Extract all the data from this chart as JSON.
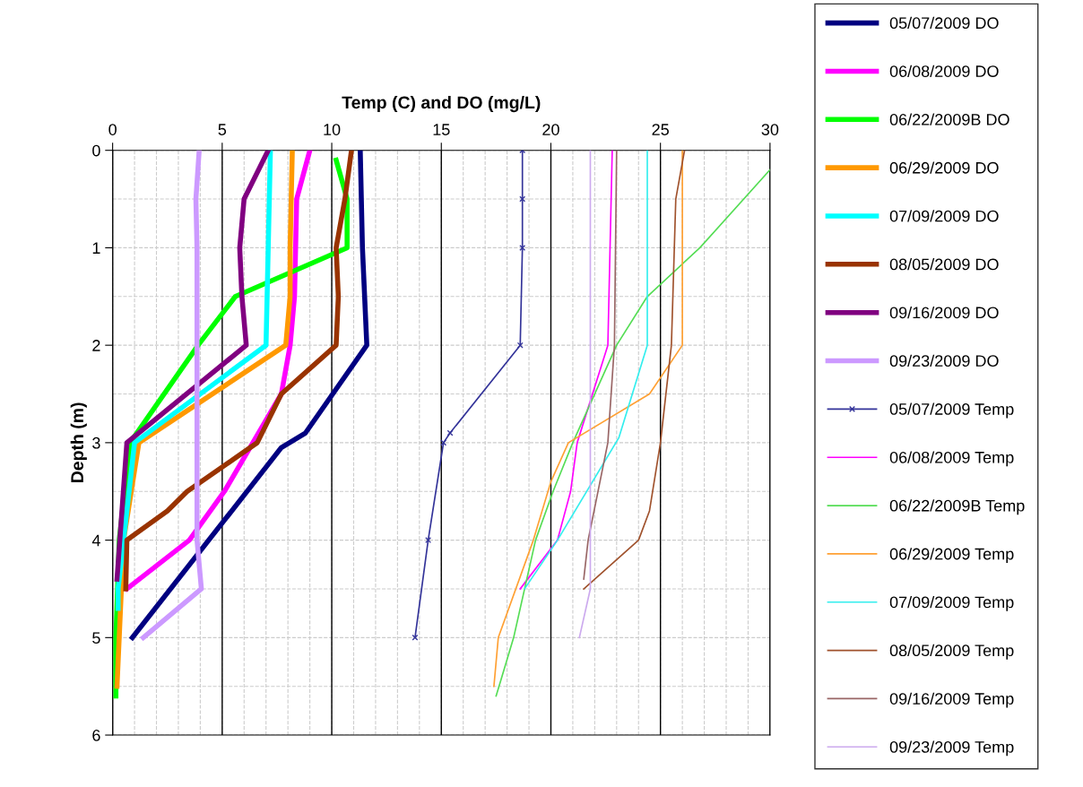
{
  "chart_data": {
    "type": "line",
    "xlabel": "Temp (C) and DO (mg/L)",
    "ylabel": "Depth (m)",
    "xlim": [
      0,
      30
    ],
    "xticks": [
      0,
      5,
      10,
      15,
      20,
      25,
      30
    ],
    "ylim": [
      6,
      0
    ],
    "yticks": [
      0,
      1,
      2,
      3,
      4,
      5,
      6
    ],
    "grid": true,
    "legend": "right",
    "line_style": "solid",
    "series": [
      {
        "name": "05/07/2009 DO",
        "color": "#000080",
        "x": [
          11.3,
          11.4,
          11.6,
          8.8,
          7.7,
          0.9
        ],
        "values": [
          0,
          1,
          2,
          2.9,
          3.05,
          5
        ]
      },
      {
        "name": "06/08/2009 DO",
        "color": "#ff00ff",
        "x": [
          9.0,
          8.4,
          8.3,
          8.1,
          7.7,
          6.4,
          5.1,
          3.5,
          0.65
        ],
        "values": [
          0,
          0.5,
          1.5,
          2,
          2.5,
          3,
          3.5,
          4,
          4.5
        ]
      },
      {
        "name": "06/22/2009B DO",
        "color": "#00ff00",
        "x": [
          10.2,
          10.7,
          10.7,
          5.6,
          3.9,
          0.8,
          0.3,
          0.15,
          0.15
        ],
        "values": [
          0.1,
          0.5,
          1,
          1.5,
          2,
          3,
          4,
          5,
          5.6
        ]
      },
      {
        "name": "06/29/2009 DO",
        "color": "#ff9900",
        "x": [
          8.2,
          8.1,
          8.1,
          7.9,
          1.2,
          0.5,
          0.3,
          0.2
        ],
        "values": [
          0,
          1,
          1.5,
          2,
          3,
          4,
          5,
          5.5
        ]
      },
      {
        "name": "07/09/2009 DO",
        "color": "#00ffff",
        "x": [
          7.2,
          7.0,
          1.0,
          0.25,
          0.25
        ],
        "values": [
          0,
          2,
          3,
          4.5,
          4.7
        ]
      },
      {
        "name": "08/05/2009 DO",
        "color": "#993300",
        "x": [
          10.9,
          10.6,
          10.2,
          10.3,
          10.2,
          7.7,
          6.6,
          3.4,
          2.5,
          0.65,
          0.6
        ],
        "values": [
          0,
          0.5,
          1,
          1.5,
          2,
          2.5,
          3,
          3.5,
          3.7,
          4,
          4.5
        ]
      },
      {
        "name": "09/16/2009 DO",
        "color": "#800080",
        "x": [
          7.1,
          6.0,
          5.8,
          5.9,
          6.1,
          0.65,
          0.2
        ],
        "values": [
          0,
          0.5,
          1,
          1.5,
          2,
          3,
          4.4
        ]
      },
      {
        "name": "09/23/2009 DO",
        "color": "#cc99ff",
        "x": [
          3.95,
          3.8,
          3.85,
          3.85,
          4.05,
          1.4
        ],
        "values": [
          0,
          0.5,
          1,
          4,
          4.5,
          5
        ]
      },
      {
        "name": "05/07/2009 Temp",
        "color": "#333399",
        "marker": "cross",
        "x": [
          18.7,
          18.7,
          18.7,
          18.6,
          15.4,
          15.1,
          14.4,
          13.8
        ],
        "values": [
          0,
          0.5,
          1,
          2,
          2.9,
          3,
          4,
          5
        ]
      },
      {
        "name": "06/08/2009 Temp",
        "color": "#ff00ff",
        "x": [
          22.8,
          22.6,
          21.9,
          21.2,
          20.9,
          20.3,
          18.6
        ],
        "values": [
          0,
          2,
          2.5,
          3,
          3.5,
          4,
          4.5
        ]
      },
      {
        "name": "06/22/2009B Temp",
        "color": "#55dd55",
        "x": [
          30.0,
          26.8,
          24.4,
          23.0,
          21.0,
          20.1,
          19.3,
          18.3,
          17.5
        ],
        "values": [
          0.2,
          1,
          1.5,
          2,
          3,
          3.5,
          4,
          5,
          5.6
        ]
      },
      {
        "name": "06/29/2009 Temp",
        "color": "#ffa033",
        "x": [
          26.0,
          26.0,
          24.5,
          20.8,
          20.0,
          19.2,
          17.6,
          17.4
        ],
        "values": [
          0,
          2,
          2.5,
          3,
          3.4,
          4,
          5,
          5.5
        ]
      },
      {
        "name": "07/09/2009 Temp",
        "color": "#33eeee",
        "x": [
          24.4,
          24.4,
          23.1,
          20.3,
          18.8
        ],
        "values": [
          0,
          2,
          2.95,
          4,
          4.5
        ]
      },
      {
        "name": "08/05/2009 Temp",
        "color": "#a0522d",
        "x": [
          26.1,
          25.7,
          25.5,
          25.0,
          24.5,
          24.0,
          21.5
        ],
        "values": [
          0,
          0.5,
          2,
          3,
          3.7,
          4,
          4.5
        ]
      },
      {
        "name": "09/16/2009 Temp",
        "color": "#996666",
        "x": [
          23.0,
          22.9,
          22.6,
          21.7,
          21.5
        ],
        "values": [
          0,
          2,
          3,
          4,
          4.4
        ]
      },
      {
        "name": "09/23/2009 Temp",
        "color": "#ccaaee",
        "x": [
          21.8,
          21.8,
          21.3
        ],
        "values": [
          0,
          4.5,
          5
        ]
      }
    ]
  }
}
